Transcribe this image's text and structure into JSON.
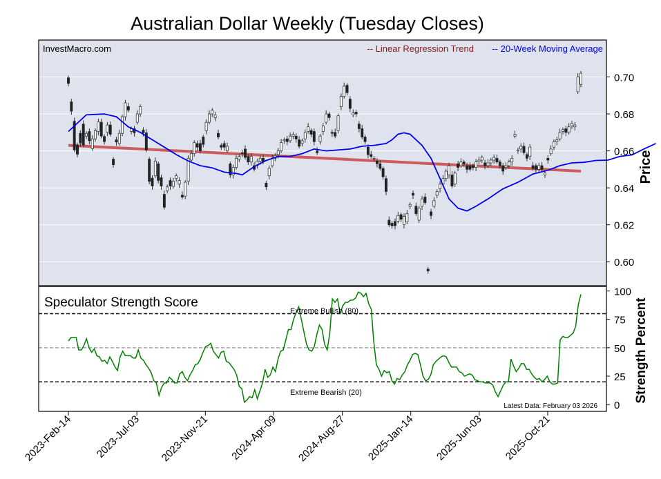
{
  "chart_data": {
    "type": "candlestick",
    "title": "Australian Dollar Weekly (Tuesday Closes)",
    "watermark": "InvestMacro.com",
    "legend": {
      "placement": "top-right",
      "items": [
        {
          "label": "-- Linear Regression Trend",
          "color": "#8b1a1a"
        },
        {
          "label": "-- 20-Week Moving Average",
          "color": "#0000ee"
        }
      ]
    },
    "price_panel": {
      "ylabel": "Price",
      "ylim": [
        0.587,
        0.72
      ],
      "yticks": [
        0.6,
        0.62,
        0.64,
        0.66,
        0.68,
        0.7
      ],
      "ytick_labels": [
        "0.60",
        "0.62",
        "0.64",
        "0.66",
        "0.68",
        "0.70"
      ],
      "regression_line": {
        "start": 0.663,
        "end": 0.649,
        "color": "#cd5c5c"
      },
      "moving_average": [
        [
          0,
          0.6705
        ],
        [
          6,
          0.6795
        ],
        [
          12,
          0.68
        ],
        [
          16,
          0.6785
        ],
        [
          20,
          0.673
        ],
        [
          24,
          0.67
        ],
        [
          28,
          0.666
        ],
        [
          32,
          0.662
        ],
        [
          36,
          0.658
        ],
        [
          40,
          0.6545
        ],
        [
          44,
          0.652
        ],
        [
          48,
          0.6508
        ],
        [
          52,
          0.6485
        ],
        [
          56,
          0.6478
        ],
        [
          58,
          0.647
        ],
        [
          62,
          0.6515
        ],
        [
          66,
          0.6548
        ],
        [
          70,
          0.657
        ],
        [
          74,
          0.657
        ],
        [
          78,
          0.6585
        ],
        [
          82,
          0.661
        ],
        [
          86,
          0.66
        ],
        [
          90,
          0.6605
        ],
        [
          94,
          0.661
        ],
        [
          98,
          0.6625
        ],
        [
          102,
          0.663
        ],
        [
          106,
          0.664
        ],
        [
          108,
          0.666
        ],
        [
          110,
          0.669
        ],
        [
          112,
          0.6698
        ],
        [
          114,
          0.669
        ],
        [
          118,
          0.663
        ],
        [
          121,
          0.656
        ],
        [
          124,
          0.645
        ],
        [
          127,
          0.634
        ],
        [
          130,
          0.629
        ],
        [
          133,
          0.6275
        ],
        [
          136,
          0.63
        ],
        [
          140,
          0.634
        ],
        [
          145,
          0.6395
        ],
        [
          150,
          0.643
        ],
        [
          155,
          0.6475
        ],
        [
          160,
          0.6495
        ],
        [
          164,
          0.652
        ],
        [
          168,
          0.6535
        ],
        [
          172,
          0.6538
        ],
        [
          176,
          0.6548
        ],
        [
          180,
          0.655
        ],
        [
          184,
          0.657
        ],
        [
          188,
          0.6578
        ],
        [
          192,
          0.661
        ],
        [
          196,
          0.664
        ]
      ],
      "candles": [
        [
          0.6995,
          0.6965
        ],
        [
          0.6865,
          0.6815
        ],
        [
          0.676,
          0.6605
        ],
        [
          0.6632,
          0.6582
        ],
        [
          0.6695,
          0.6642
        ],
        [
          0.6745,
          0.6632
        ],
        [
          0.668,
          0.6695
        ],
        [
          0.6705,
          0.6655
        ],
        [
          0.6612,
          0.6665
        ],
        [
          0.6665,
          0.671
        ],
        [
          0.6705,
          0.6758
        ],
        [
          0.6755,
          0.668
        ],
        [
          0.6678,
          0.665
        ],
        [
          0.67,
          0.674
        ],
        [
          0.674,
          0.669
        ],
        [
          0.6555,
          0.6525
        ],
        [
          0.666,
          0.6648
        ],
        [
          0.664,
          0.6695
        ],
        [
          0.6695,
          0.6785
        ],
        [
          0.6785,
          0.686
        ],
        [
          0.684,
          0.682
        ],
        [
          0.6705,
          0.672
        ],
        [
          0.672,
          0.6698
        ],
        [
          0.6755,
          0.68
        ],
        [
          0.68,
          0.684
        ],
        [
          0.6712,
          0.6698
        ],
        [
          0.6698,
          0.6605
        ],
        [
          0.6555,
          0.6435
        ],
        [
          0.6452,
          0.641
        ],
        [
          0.6465,
          0.6545
        ],
        [
          0.653,
          0.644
        ],
        [
          0.6455,
          0.641
        ],
        [
          0.6365,
          0.6295
        ],
        [
          0.6385,
          0.6405
        ],
        [
          0.644,
          0.641
        ],
        [
          0.6408,
          0.6435
        ],
        [
          0.645,
          0.6465
        ],
        [
          0.642,
          0.644
        ],
        [
          0.636,
          0.635
        ],
        [
          0.6355,
          0.643
        ],
        [
          0.6435,
          0.656
        ],
        [
          0.655,
          0.6585
        ],
        [
          0.6585,
          0.6645
        ],
        [
          0.664,
          0.662
        ],
        [
          0.664,
          0.66
        ],
        [
          0.6675,
          0.6635
        ],
        [
          0.671,
          0.6755
        ],
        [
          0.6755,
          0.68
        ],
        [
          0.68,
          0.682
        ],
        [
          0.678,
          0.6795
        ],
        [
          0.6695,
          0.6675
        ],
        [
          0.663,
          0.662
        ],
        [
          0.664,
          0.662
        ],
        [
          0.66,
          0.6625
        ],
        [
          0.653,
          0.647
        ],
        [
          0.647,
          0.651
        ],
        [
          0.651,
          0.656
        ],
        [
          0.6555,
          0.657
        ],
        [
          0.659,
          0.6585
        ],
        [
          0.661,
          0.6565
        ],
        [
          0.657,
          0.654
        ],
        [
          0.654,
          0.657
        ],
        [
          0.652,
          0.65
        ],
        [
          0.652,
          0.6545
        ],
        [
          0.6545,
          0.656
        ],
        [
          0.656,
          0.654
        ],
        [
          0.6425,
          0.6405
        ],
        [
          0.6465,
          0.6505
        ],
        [
          0.652,
          0.656
        ],
        [
          0.656,
          0.6575
        ],
        [
          0.658,
          0.66
        ],
        [
          0.66,
          0.6645
        ],
        [
          0.6655,
          0.666
        ],
        [
          0.6665,
          0.665
        ],
        [
          0.6655,
          0.668
        ],
        [
          0.668,
          0.669
        ],
        [
          0.668,
          0.6665
        ],
        [
          0.666,
          0.6625
        ],
        [
          0.664,
          0.6655
        ],
        [
          0.6665,
          0.67
        ],
        [
          0.6705,
          0.673
        ],
        [
          0.671,
          0.669
        ],
        [
          0.6705,
          0.665
        ],
        [
          0.66,
          0.659
        ],
        [
          0.665,
          0.668
        ],
        [
          0.6705,
          0.6735
        ],
        [
          0.6755,
          0.68
        ],
        [
          0.68,
          0.678
        ],
        [
          0.67,
          0.6695
        ],
        [
          0.67,
          0.668
        ],
        [
          0.671,
          0.679
        ],
        [
          0.684,
          0.6895
        ],
        [
          0.6895,
          0.695
        ],
        [
          0.6955,
          0.6915
        ],
        [
          0.688,
          0.683
        ],
        [
          0.6795,
          0.6805
        ],
        [
          0.681,
          0.68
        ],
        [
          0.6745,
          0.672
        ],
        [
          0.672,
          0.6675
        ],
        [
          0.6675,
          0.665
        ],
        [
          0.662,
          0.658
        ],
        [
          0.658,
          0.657
        ],
        [
          0.656,
          0.656
        ],
        [
          0.6545,
          0.653
        ],
        [
          0.653,
          0.6505
        ],
        [
          0.6505,
          0.646
        ],
        [
          0.645,
          0.638
        ],
        [
          0.6225,
          0.62
        ],
        [
          0.6208,
          0.6195
        ],
        [
          0.6218,
          0.6195
        ],
        [
          0.622,
          0.625
        ],
        [
          0.6255,
          0.623
        ],
        [
          0.62,
          0.6245
        ],
        [
          0.6215,
          0.626
        ],
        [
          0.63,
          0.631
        ],
        [
          0.637,
          0.636
        ],
        [
          0.63,
          0.626
        ],
        [
          0.6225,
          0.629
        ],
        [
          0.63,
          0.634
        ],
        [
          0.635,
          0.632
        ],
        [
          0.596,
          0.595
        ],
        [
          0.627,
          0.625
        ],
        [
          0.63,
          0.633
        ],
        [
          0.636,
          0.638
        ],
        [
          0.6395,
          0.642
        ],
        [
          0.642,
          0.645
        ],
        [
          0.645,
          0.649
        ],
        [
          0.647,
          0.652
        ],
        [
          0.647,
          0.641
        ],
        [
          0.642,
          0.648
        ],
        [
          0.653,
          0.651
        ],
        [
          0.652,
          0.654
        ],
        [
          0.654,
          0.653
        ],
        [
          0.652,
          0.65
        ],
        [
          0.652,
          0.65
        ],
        [
          0.652,
          0.651
        ],
        [
          0.651,
          0.654
        ],
        [
          0.654,
          0.655
        ],
        [
          0.655,
          0.6565
        ],
        [
          0.6535,
          0.652
        ],
        [
          0.652,
          0.6535
        ],
        [
          0.6535,
          0.655
        ],
        [
          0.655,
          0.6565
        ],
        [
          0.656,
          0.654
        ],
        [
          0.654,
          0.652
        ],
        [
          0.652,
          0.649
        ],
        [
          0.651,
          0.652
        ],
        [
          0.652,
          0.654
        ],
        [
          0.654,
          0.656
        ],
        [
          0.668,
          0.669
        ],
        [
          0.66,
          0.6605
        ],
        [
          0.661,
          0.6625
        ],
        [
          0.6625,
          0.659
        ],
        [
          0.658,
          0.656
        ],
        [
          0.657,
          0.662
        ],
        [
          0.652,
          0.6505
        ],
        [
          0.652,
          0.65
        ],
        [
          0.65,
          0.652
        ],
        [
          0.652,
          0.65
        ],
        [
          0.647,
          0.648
        ],
        [
          0.656,
          0.655
        ],
        [
          0.6585,
          0.661
        ],
        [
          0.662,
          0.665
        ],
        [
          0.665,
          0.666
        ],
        [
          0.6665,
          0.67
        ],
        [
          0.6705,
          0.6715
        ],
        [
          0.672,
          0.67
        ],
        [
          0.67,
          0.673
        ],
        [
          0.6735,
          0.675
        ],
        [
          0.673,
          0.674
        ],
        [
          0.692,
          0.7
        ],
        [
          0.696,
          0.702
        ]
      ]
    },
    "strength_panel": {
      "title": "Speculator Strength Score",
      "ylabel": "Strength Percent",
      "ylim": [
        -6,
        104
      ],
      "yticks": [
        0,
        25,
        50,
        75,
        100
      ],
      "ytick_labels": [
        "0",
        "25",
        "50",
        "75",
        "100"
      ],
      "extreme_bullish": {
        "value": 80,
        "label": "Extreme Bullish (80)"
      },
      "extreme_bearish": {
        "value": 20,
        "label": "Extreme Bearish (20)"
      },
      "midline": 50,
      "latest_label": "Latest Data: February 03 2026",
      "series": [
        56,
        59,
        59,
        59,
        48,
        48,
        52,
        58,
        50,
        46,
        49,
        43,
        42,
        38,
        39,
        36,
        42,
        38,
        33,
        30,
        42,
        47,
        43,
        43,
        43,
        41,
        41,
        48,
        41,
        39,
        35,
        32,
        28,
        21,
        19,
        8,
        15,
        19,
        19,
        24,
        22,
        19,
        19,
        27,
        29,
        24,
        21,
        26,
        30,
        35,
        36,
        40,
        46,
        51,
        52,
        54,
        47,
        44,
        41,
        46,
        47,
        38,
        37,
        34,
        31,
        26,
        16,
        14,
        2,
        4,
        7,
        6,
        13,
        5,
        12,
        19,
        31,
        24,
        26,
        33,
        29,
        40,
        47,
        48,
        57,
        66,
        66,
        75,
        81,
        86,
        75,
        64,
        53,
        48,
        47,
        51,
        62,
        70,
        66,
        53,
        48,
        63,
        93,
        90,
        93,
        80,
        87,
        90,
        90,
        92,
        92,
        94,
        99,
        98,
        95,
        98,
        89,
        84,
        55,
        35,
        31,
        25,
        30,
        28,
        29,
        21,
        18,
        23,
        22,
        26,
        29,
        35,
        39,
        44,
        45,
        44,
        35,
        25,
        21,
        22,
        26,
        35,
        38,
        40,
        42,
        43,
        42,
        37,
        33,
        33,
        33,
        29,
        28,
        25,
        26,
        27,
        26,
        22,
        21,
        20,
        20,
        19,
        19,
        19,
        17,
        11,
        7,
        12,
        17,
        20,
        20,
        40,
        34,
        29,
        32,
        36,
        36,
        31,
        31,
        27,
        24,
        22,
        23,
        20,
        22,
        25,
        20,
        18,
        18,
        19,
        57,
        60,
        59,
        59,
        61,
        63,
        69,
        88,
        97
      ]
    },
    "x_axis": {
      "tick_labels": [
        "2023-Feb-14",
        "2023-Jul-03",
        "2023-Nov-21",
        "2024-Apr-09",
        "2024-Aug-27",
        "2025-Jan-14",
        "2025-Jun-03",
        "2025-Oct-21"
      ]
    }
  }
}
